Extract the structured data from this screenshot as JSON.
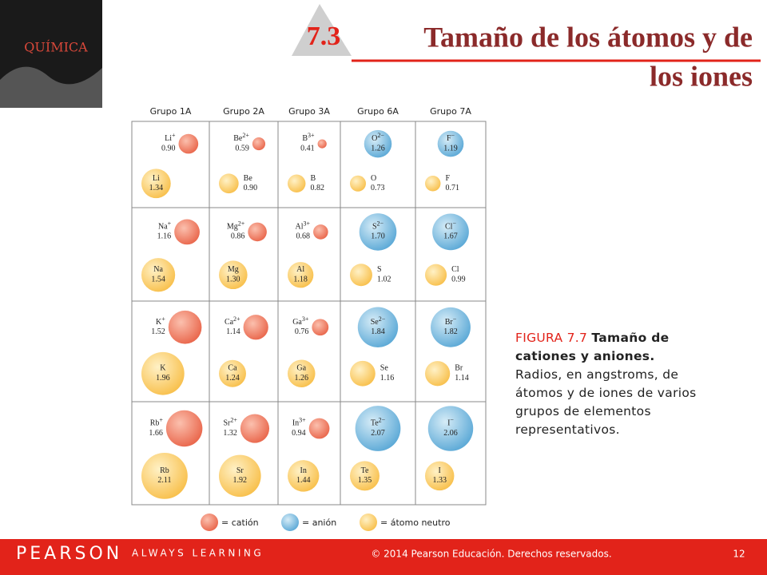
{
  "cover": {
    "title": "QUÍMICA"
  },
  "header": {
    "number": "7.3",
    "title_line1": "Tamaño de los átomos y de",
    "title_line2": "los iones"
  },
  "table": {
    "columns": [
      "Grupo 1A",
      "Grupo 2A",
      "Grupo 3A",
      "Grupo 6A",
      "Grupo 7A"
    ],
    "rows": [
      [
        {
          "ion": {
            "symbol": "Li",
            "charge": "+",
            "radius": "0.90",
            "kind": "cation"
          },
          "atom": {
            "symbol": "Li",
            "radius": "1.34"
          }
        },
        {
          "ion": {
            "symbol": "Be",
            "charge": "2+",
            "radius": "0.59",
            "kind": "cation"
          },
          "atom": {
            "symbol": "Be",
            "radius": "0.90"
          }
        },
        {
          "ion": {
            "symbol": "B",
            "charge": "3+",
            "radius": "0.41",
            "kind": "cation"
          },
          "atom": {
            "symbol": "B",
            "radius": "0.82"
          }
        },
        {
          "ion": {
            "symbol": "O",
            "charge": "2−",
            "radius": "1.26",
            "kind": "anion"
          },
          "atom": {
            "symbol": "O",
            "radius": "0.73"
          }
        },
        {
          "ion": {
            "symbol": "F",
            "charge": "−",
            "radius": "1.19",
            "kind": "anion"
          },
          "atom": {
            "symbol": "F",
            "radius": "0.71"
          }
        }
      ],
      [
        {
          "ion": {
            "symbol": "Na",
            "charge": "+",
            "radius": "1.16",
            "kind": "cation"
          },
          "atom": {
            "symbol": "Na",
            "radius": "1.54"
          }
        },
        {
          "ion": {
            "symbol": "Mg",
            "charge": "2+",
            "radius": "0.86",
            "kind": "cation"
          },
          "atom": {
            "symbol": "Mg",
            "radius": "1.30"
          }
        },
        {
          "ion": {
            "symbol": "Al",
            "charge": "3+",
            "radius": "0.68",
            "kind": "cation"
          },
          "atom": {
            "symbol": "Al",
            "radius": "1.18"
          }
        },
        {
          "ion": {
            "symbol": "S",
            "charge": "2−",
            "radius": "1.70",
            "kind": "anion"
          },
          "atom": {
            "symbol": "S",
            "radius": "1.02"
          }
        },
        {
          "ion": {
            "symbol": "Cl",
            "charge": "−",
            "radius": "1.67",
            "kind": "anion"
          },
          "atom": {
            "symbol": "Cl",
            "radius": "0.99"
          }
        }
      ],
      [
        {
          "ion": {
            "symbol": "K",
            "charge": "+",
            "radius": "1.52",
            "kind": "cation"
          },
          "atom": {
            "symbol": "K",
            "radius": "1.96"
          }
        },
        {
          "ion": {
            "symbol": "Ca",
            "charge": "2+",
            "radius": "1.14",
            "kind": "cation"
          },
          "atom": {
            "symbol": "Ca",
            "radius": "1.24"
          }
        },
        {
          "ion": {
            "symbol": "Ga",
            "charge": "3+",
            "radius": "0.76",
            "kind": "cation"
          },
          "atom": {
            "symbol": "Ga",
            "radius": "1.26"
          }
        },
        {
          "ion": {
            "symbol": "Se",
            "charge": "2−",
            "radius": "1.84",
            "kind": "anion"
          },
          "atom": {
            "symbol": "Se",
            "radius": "1.16"
          }
        },
        {
          "ion": {
            "symbol": "Br",
            "charge": "−",
            "radius": "1.82",
            "kind": "anion"
          },
          "atom": {
            "symbol": "Br",
            "radius": "1.14"
          }
        }
      ],
      [
        {
          "ion": {
            "symbol": "Rb",
            "charge": "+",
            "radius": "1.66",
            "kind": "cation"
          },
          "atom": {
            "symbol": "Rb",
            "radius": "2.11"
          }
        },
        {
          "ion": {
            "symbol": "Sr",
            "charge": "2+",
            "radius": "1.32",
            "kind": "cation"
          },
          "atom": {
            "symbol": "Sr",
            "radius": "1.92"
          }
        },
        {
          "ion": {
            "symbol": "In",
            "charge": "3+",
            "radius": "0.94",
            "kind": "cation"
          },
          "atom": {
            "symbol": "In",
            "radius": "1.44"
          }
        },
        {
          "ion": {
            "symbol": "Te",
            "charge": "2−",
            "radius": "2.07",
            "kind": "anion"
          },
          "atom": {
            "symbol": "Te",
            "radius": "1.35"
          }
        },
        {
          "ion": {
            "symbol": "I",
            "charge": "−",
            "radius": "2.06",
            "kind": "anion"
          },
          "atom": {
            "symbol": "I",
            "radius": "1.33"
          }
        }
      ]
    ]
  },
  "legend": [
    "= catión",
    "= anión",
    "= átomo neutro"
  ],
  "caption": {
    "figure": "FIGURA 7.7",
    "bold": "Tamaño de cationes y aniones.",
    "text": "Radios, en angstroms, de átomos y de iones de varios grupos de elementos representativos."
  },
  "footer": {
    "brand": "PEARSON",
    "tagline": "ALWAYS LEARNING",
    "copyright": "© 2014 Pearson Educación. Derechos reservados.",
    "page": "12"
  }
}
